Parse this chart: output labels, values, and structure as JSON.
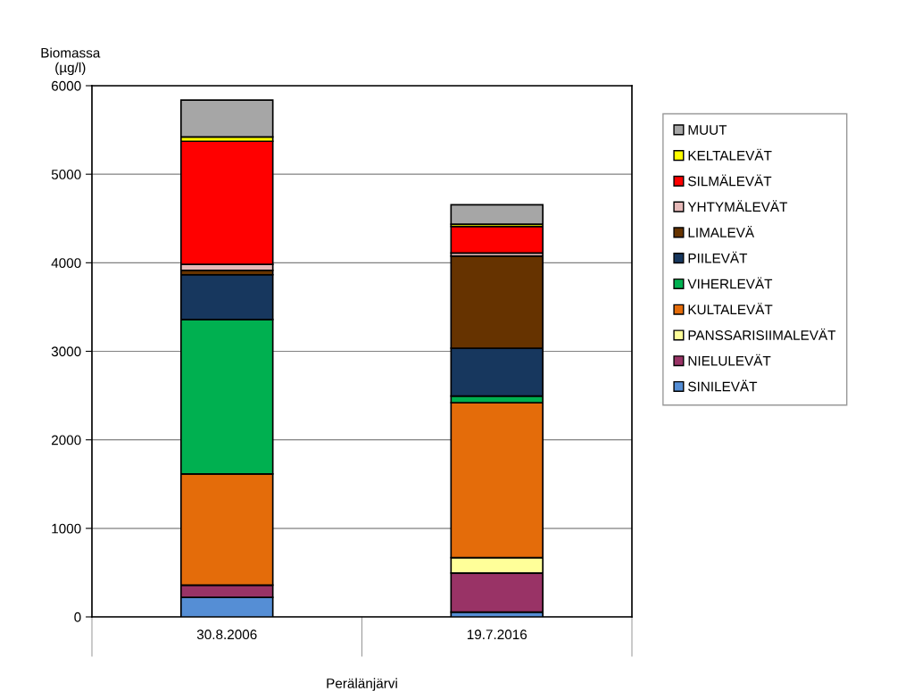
{
  "chart_data": {
    "type": "bar",
    "stacked": true,
    "ylabel": "Biomassa\n(µg/l)",
    "xlabel": "Perälänjärvi",
    "categories": [
      "30.8.2006",
      "19.7.2016"
    ],
    "series": [
      {
        "name": "SINILEVÄT",
        "color": "#558ed5",
        "values": [
          220,
          55
        ]
      },
      {
        "name": "NIELULEVÄT",
        "color": "#993366",
        "values": [
          140,
          440
        ]
      },
      {
        "name": "PANSSARISIIMALEVÄT",
        "color": "#ffff99",
        "values": [
          0,
          175
        ]
      },
      {
        "name": "KULTALEVÄT",
        "color": "#e46c0a",
        "values": [
          1255,
          1750
        ]
      },
      {
        "name": "VIHERLEVÄT",
        "color": "#00b050",
        "values": [
          1745,
          75
        ]
      },
      {
        "name": "PIILEVÄT",
        "color": "#17375e",
        "values": [
          505,
          540
        ]
      },
      {
        "name": "LIMALEVÄ",
        "color": "#663300",
        "values": [
          50,
          1040
        ]
      },
      {
        "name": "YHTYMÄLEVÄT",
        "color": "#e6b9b8",
        "values": [
          67,
          35
        ]
      },
      {
        "name": "SILMÄLEVÄT",
        "color": "#ff0000",
        "values": [
          1390,
          300
        ]
      },
      {
        "name": "KELTALEVÄT",
        "color": "#ffff00",
        "values": [
          50,
          25
        ]
      },
      {
        "name": "MUUT",
        "color": "#a6a6a6",
        "values": [
          416,
          220
        ]
      }
    ],
    "ylim": [
      0,
      6000
    ],
    "yticks": [
      0,
      1000,
      2000,
      3000,
      4000,
      5000,
      6000
    ],
    "grid": "y",
    "legend": "right"
  }
}
